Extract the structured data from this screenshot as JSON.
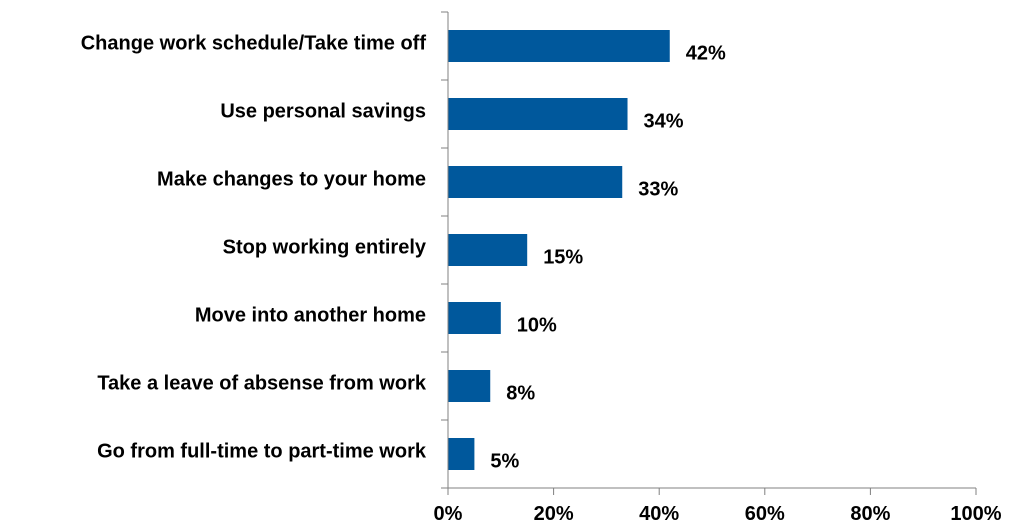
{
  "chart_data": {
    "type": "bar",
    "orientation": "horizontal",
    "categories": [
      "Change work schedule/Take time off",
      "Use personal savings",
      "Make changes to your home",
      "Stop working entirely",
      "Move into another home",
      "Take a leave of absense from work",
      "Go from full-time to part-time work"
    ],
    "values": [
      42,
      34,
      33,
      15,
      10,
      8,
      5
    ],
    "value_labels": [
      "42%",
      "34%",
      "33%",
      "15%",
      "10%",
      "8%",
      "5%"
    ],
    "xlim": [
      0,
      100
    ],
    "xticks": [
      0,
      20,
      40,
      60,
      80,
      100
    ],
    "xtick_labels": [
      "0%",
      "20%",
      "40%",
      "60%",
      "80%",
      "100%"
    ],
    "title": "",
    "xlabel": "",
    "ylabel": "",
    "grid": false,
    "bar_color": "#00589C",
    "axis_color": "#808080"
  }
}
